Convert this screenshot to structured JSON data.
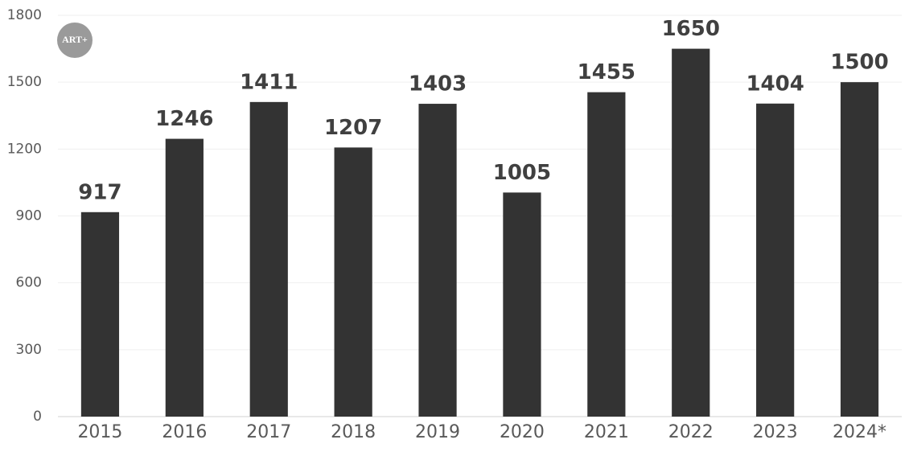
{
  "chart_data": {
    "type": "bar",
    "logo": "ART+",
    "categories": [
      "2015",
      "2016",
      "2017",
      "2018",
      "2019",
      "2020",
      "2021",
      "2022",
      "2023",
      "2024*"
    ],
    "values": [
      917,
      1246,
      1411,
      1207,
      1403,
      1005,
      1455,
      1650,
      1404,
      1500
    ],
    "color": "#333333",
    "ylim": [
      0,
      1800
    ],
    "yticks": [
      0,
      300,
      600,
      900,
      1200,
      1500,
      1800
    ],
    "grid": true
  }
}
